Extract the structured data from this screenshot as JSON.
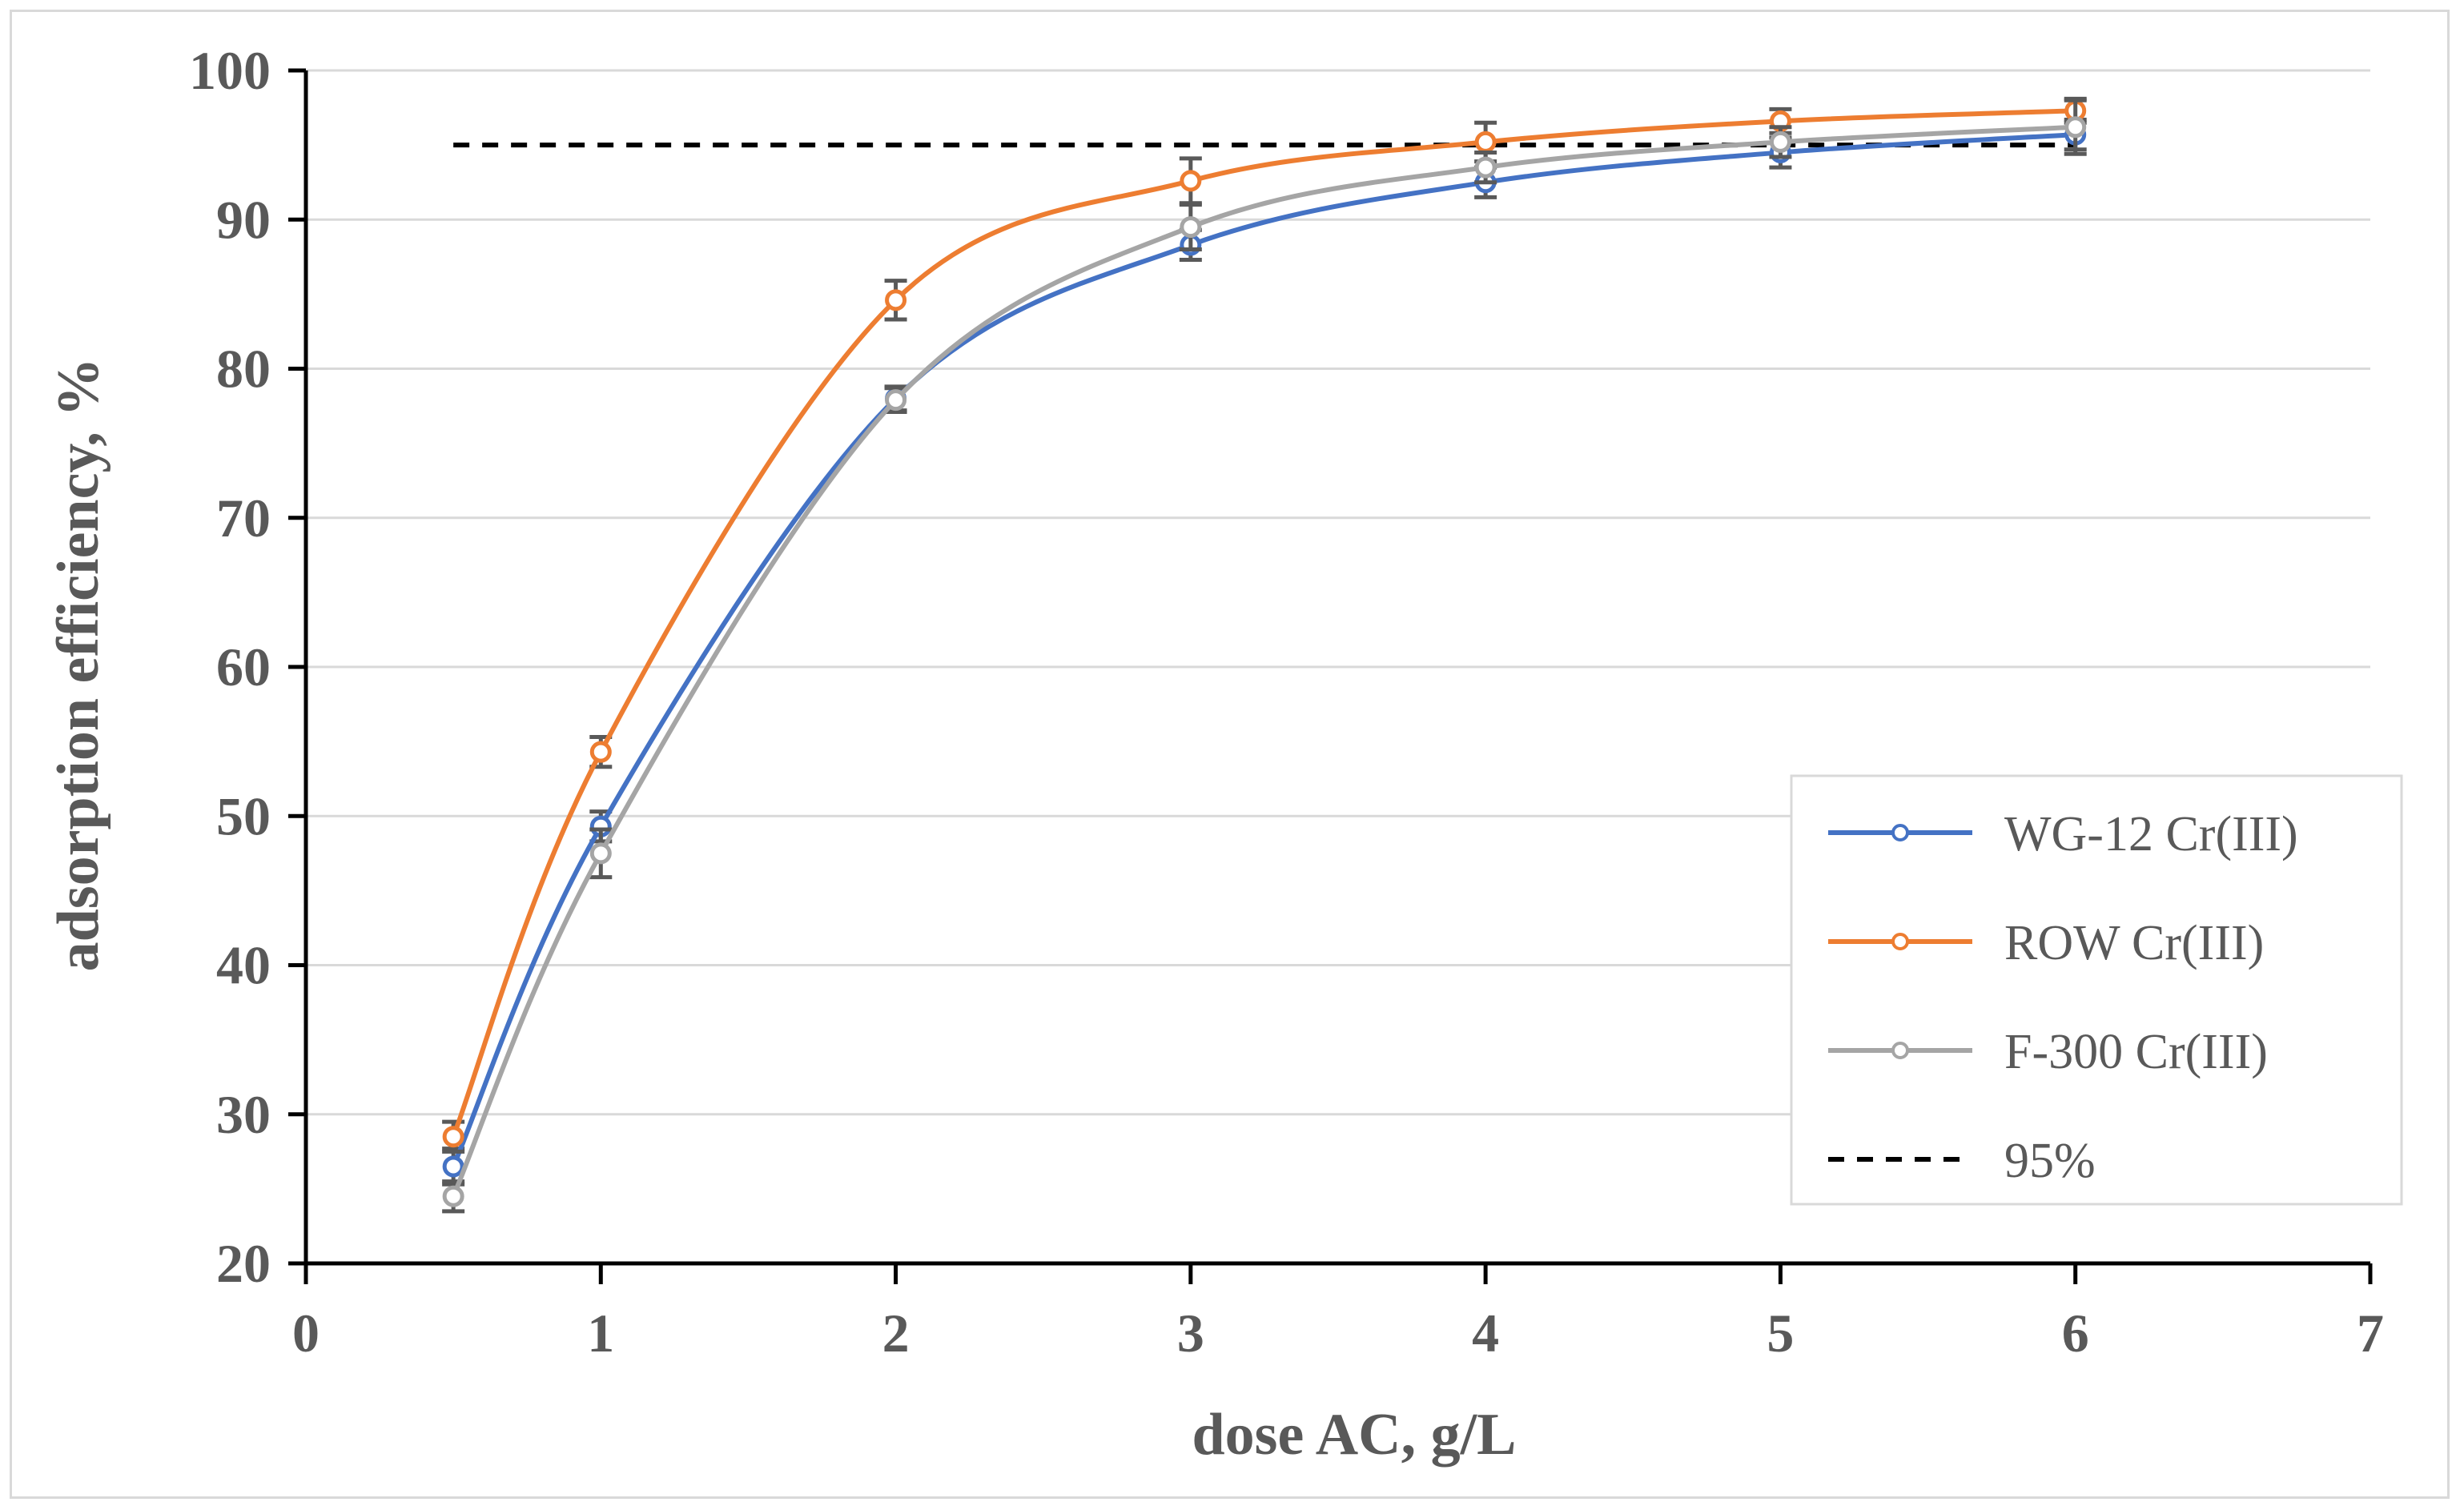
{
  "chart_data": {
    "type": "line",
    "title": "",
    "xlabel": "dose AC, g/L",
    "ylabel": "adsorption efficiency, %",
    "xlim": [
      0,
      7
    ],
    "ylim": [
      20,
      100
    ],
    "xticks": [
      0,
      1,
      2,
      3,
      4,
      5,
      6,
      7
    ],
    "yticks": [
      20,
      30,
      40,
      50,
      60,
      70,
      80,
      90,
      100
    ],
    "x_tick_labels": [
      "0",
      "1",
      "2",
      "3",
      "4",
      "5",
      "6",
      "7"
    ],
    "y_tick_labels": [
      "20",
      "30",
      "40",
      "50",
      "60",
      "70",
      "80",
      "90",
      "100"
    ],
    "grid": "horizontal",
    "legend_position": "bottom-right",
    "x": [
      0.5,
      1,
      2,
      3,
      4,
      5,
      6
    ],
    "series": [
      {
        "name": "WG-12 Cr(III)",
        "color": "#4472c4",
        "values": [
          26.5,
          49.3,
          78.0,
          88.3,
          92.5,
          94.5,
          95.7
        ],
        "errors": [
          1.2,
          1.0,
          0.8,
          1.0,
          1.0,
          1.0,
          1.0
        ],
        "marker": "circle"
      },
      {
        "name": "ROW Cr(III)",
        "color": "#ed7d31",
        "values": [
          28.5,
          54.3,
          84.6,
          92.6,
          95.2,
          96.6,
          97.3
        ],
        "errors": [
          1.0,
          1.0,
          1.3,
          1.5,
          1.3,
          0.8,
          0.8
        ],
        "marker": "circle"
      },
      {
        "name": "F-300 Cr(III)",
        "color": "#a5a5a5",
        "values": [
          24.5,
          47.5,
          77.9,
          89.5,
          93.5,
          95.2,
          96.2
        ],
        "errors": [
          1.0,
          1.6,
          0.8,
          1.5,
          1.0,
          1.0,
          1.8
        ],
        "marker": "circle"
      },
      {
        "name": "95%",
        "color": "#000000",
        "style": "dashed",
        "x": [
          0.5,
          6
        ],
        "values": [
          95,
          95
        ]
      }
    ]
  }
}
